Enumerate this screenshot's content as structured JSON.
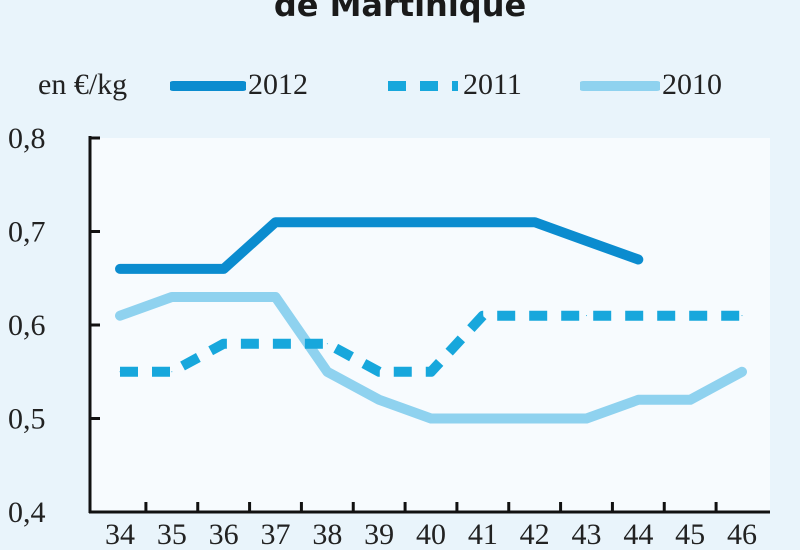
{
  "title": "de Martinique",
  "chart_data": {
    "type": "line",
    "unit_label": "en €/kg",
    "x": [
      "34",
      "35",
      "36",
      "37",
      "38",
      "39",
      "40",
      "41",
      "42",
      "43",
      "44",
      "45",
      "46"
    ],
    "ylim": [
      0.4,
      0.8
    ],
    "yticks": [
      "0,4",
      "0,5",
      "0,6",
      "0,7",
      "0,8"
    ],
    "yticks_values": [
      0.4,
      0.5,
      0.6,
      0.7,
      0.8
    ],
    "grid": false,
    "legend_position": "top",
    "series": [
      {
        "name": "2012",
        "style": "solid",
        "color": "#0b8ccf",
        "values": [
          0.66,
          0.66,
          0.66,
          0.71,
          0.71,
          0.71,
          0.71,
          0.71,
          0.71,
          0.69,
          0.67,
          null,
          null
        ]
      },
      {
        "name": "2011",
        "style": "dashed",
        "color": "#17a7dc",
        "values": [
          0.55,
          0.55,
          0.58,
          0.58,
          0.58,
          0.55,
          0.55,
          0.61,
          0.61,
          0.61,
          0.61,
          0.61,
          0.61
        ]
      },
      {
        "name": "2010",
        "style": "solid",
        "color": "#8fd2ef",
        "values": [
          0.61,
          0.63,
          0.63,
          0.63,
          0.55,
          0.52,
          0.5,
          0.5,
          0.5,
          0.5,
          0.52,
          0.52,
          0.55
        ]
      }
    ]
  }
}
